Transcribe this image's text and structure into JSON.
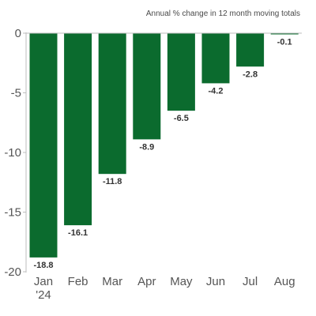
{
  "chart_data": {
    "type": "bar",
    "subtitle": "Annual % change in 12 month moving totals",
    "title": "",
    "xlabel": "",
    "ylabel": "",
    "categories": [
      "Jan '24",
      "Feb",
      "Mar",
      "Apr",
      "May",
      "Jun",
      "Jul",
      "Aug"
    ],
    "category_lines": [
      [
        "Jan",
        "'24"
      ],
      [
        "Feb"
      ],
      [
        "Mar"
      ],
      [
        "Apr"
      ],
      [
        "May"
      ],
      [
        "Jun"
      ],
      [
        "Jul"
      ],
      [
        "Aug"
      ]
    ],
    "values": [
      -18.8,
      -16.1,
      -11.8,
      -8.9,
      -6.5,
      -4.2,
      -2.8,
      -0.1
    ],
    "value_labels": [
      "-18.8",
      "-16.1",
      "-11.8",
      "-8.9",
      "-6.5",
      "-4.2",
      "-2.8",
      "-0.1"
    ],
    "ylim": [
      -20,
      0
    ],
    "yticks": [
      0,
      -5,
      -10,
      -15,
      -20
    ],
    "ytick_labels": [
      "0",
      "-5",
      "-10",
      "-15",
      "-20"
    ],
    "grid": false,
    "legend": "none",
    "bar_color": "#0b6b2e",
    "axis_color": "#bdbdbd"
  }
}
